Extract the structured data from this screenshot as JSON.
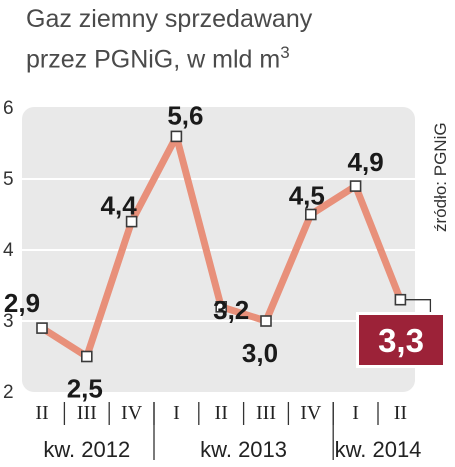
{
  "title": {
    "line1": "Gaz ziemny sprzedawany",
    "line2": "przez PGNiG, w mld m",
    "line2_sup": "3"
  },
  "source": "źródło: PGNiG",
  "colors": {
    "plot_bg": "#e9e9e9",
    "line": "#e8907a",
    "marker_fill": "#ffffff",
    "marker_stroke": "#3a3a3a",
    "highlight_box": "#9c2238",
    "grid": "#ffffff"
  },
  "chart_data": {
    "type": "line",
    "title": "Gaz ziemny sprzedawany przez PGNiG, w mld m3",
    "xlabel": "",
    "ylabel": "",
    "ylim": [
      2,
      6
    ],
    "yticks": [
      "2",
      "3",
      "4",
      "5",
      "6"
    ],
    "grid": true,
    "categories": [
      "II",
      "III",
      "IV",
      "I",
      "II",
      "III",
      "IV",
      "I",
      "II"
    ],
    "groups": [
      {
        "label": "kw. 2012",
        "span": [
          0,
          2
        ]
      },
      {
        "label": "kw. 2013",
        "span": [
          3,
          6
        ]
      },
      {
        "label": "kw. 2014",
        "span": [
          7,
          8
        ]
      }
    ],
    "series": [
      {
        "values": [
          2.9,
          2.5,
          4.4,
          5.6,
          3.2,
          3.0,
          4.5,
          4.9,
          3.3
        ],
        "labels": [
          "2,9",
          "2,5",
          "4,4",
          "5,6",
          "3,2",
          "3,0",
          "4,5",
          "4,9",
          "3,3"
        ]
      }
    ]
  }
}
